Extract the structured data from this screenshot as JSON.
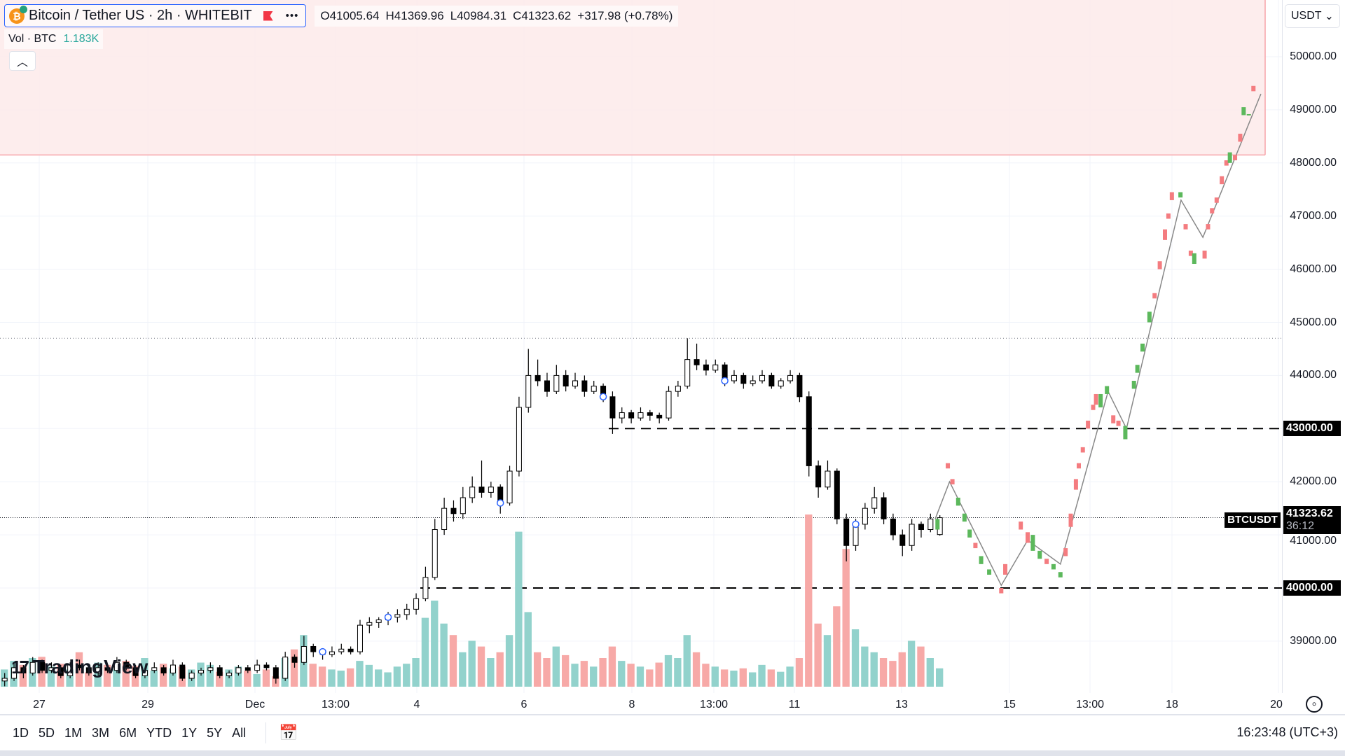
{
  "legend": {
    "title": "Bitcoin / Tether US · 2h · WHITEBIT",
    "coin_icon": "bitcoin-icon",
    "more_icon": "ellipsis-icon"
  },
  "ohlc": {
    "o": "O41005.64",
    "h": "H41369.96",
    "l": "L40984.31",
    "c": "C41323.62",
    "change": "+317.98 (+0.78%)"
  },
  "volume_legend": {
    "label": "Vol · BTC",
    "value": "1.183K"
  },
  "currency_select": {
    "value": "USDT"
  },
  "price_axis": {
    "labels": [
      "50000.00",
      "49000.00",
      "48000.00",
      "47000.00",
      "46000.00",
      "45000.00",
      "44000.00",
      "43000.00",
      "42000.00",
      "41000.00",
      "40000.00",
      "39000.00"
    ]
  },
  "tags": {
    "level_high": "43000.00",
    "level_low": "40000.00",
    "symbol": "BTCUSDT",
    "last_price": "41323.62",
    "countdown": "36:12"
  },
  "time_axis": {
    "labels": [
      "27",
      "29",
      "Dec",
      "13:00",
      "4",
      "6",
      "8",
      "13:00",
      "11",
      "13",
      "15",
      "13:00",
      "18",
      "20"
    ]
  },
  "toolbar": {
    "ranges": [
      "1D",
      "5D",
      "1M",
      "3M",
      "6M",
      "YTD",
      "1Y",
      "5Y",
      "All"
    ],
    "clock": "16:23:48 (UTC+3)"
  },
  "logo": {
    "text": "TradingView"
  },
  "colors": {
    "up_vol": "#92d2cc",
    "down_vol": "#f7a9a7",
    "fc_up": "#5cb85c",
    "fc_down": "#f47c80",
    "zone": "#fdeaea",
    "zone_border": "#f7a4a8",
    "accent": "#2962ff"
  },
  "chart_data": {
    "type": "candlestick",
    "price_range": [
      38000,
      50300
    ],
    "resistance_zone": {
      "from": 48150,
      "to": 50300
    },
    "levels": {
      "dashed": [
        43000,
        40000
      ],
      "dotted_high": 44700,
      "last": 41323.62
    },
    "candles": [
      [
        38250,
        38400,
        38150,
        38300
      ],
      [
        38300,
        38600,
        38250,
        38500
      ],
      [
        38500,
        38550,
        38300,
        38400
      ],
      [
        38400,
        38700,
        38350,
        38600
      ],
      [
        38600,
        38650,
        38400,
        38450
      ],
      [
        38450,
        38600,
        38400,
        38500
      ],
      [
        38500,
        38550,
        38300,
        38350
      ],
      [
        38350,
        38600,
        38300,
        38550
      ],
      [
        38550,
        38650,
        38450,
        38500
      ],
      [
        38500,
        38550,
        38350,
        38400
      ],
      [
        38400,
        38600,
        38350,
        38500
      ],
      [
        38500,
        38550,
        38400,
        38450
      ],
      [
        38450,
        38700,
        38400,
        38600
      ],
      [
        38600,
        38650,
        38450,
        38500
      ],
      [
        38500,
        38550,
        38300,
        38350
      ],
      [
        38350,
        38500,
        38300,
        38450
      ],
      [
        38450,
        38600,
        38400,
        38500
      ],
      [
        38500,
        38550,
        38350,
        38400
      ],
      [
        38400,
        38650,
        38350,
        38550
      ],
      [
        38550,
        38600,
        38250,
        38300
      ],
      [
        38300,
        38450,
        38250,
        38400
      ],
      [
        38400,
        38500,
        38350,
        38450
      ],
      [
        38450,
        38600,
        38400,
        38500
      ],
      [
        38500,
        38550,
        38300,
        38350
      ],
      [
        38350,
        38450,
        38300,
        38400
      ],
      [
        38400,
        38550,
        38350,
        38500
      ],
      [
        38500,
        38550,
        38400,
        38450
      ],
      [
        38450,
        38650,
        38400,
        38550
      ],
      [
        38550,
        38600,
        38450,
        38500
      ],
      [
        38500,
        38550,
        38200,
        38300
      ],
      [
        38300,
        38800,
        38250,
        38700
      ],
      [
        38700,
        38750,
        38500,
        38600
      ],
      [
        38600,
        39100,
        38550,
        38900
      ],
      [
        38900,
        38950,
        38700,
        38800
      ],
      [
        38800,
        38850,
        38650,
        38750
      ],
      [
        38750,
        38900,
        38700,
        38800
      ],
      [
        38800,
        38950,
        38750,
        38850
      ],
      [
        38850,
        38900,
        38750,
        38800
      ],
      [
        38800,
        39400,
        38750,
        39300
      ],
      [
        39300,
        39450,
        39150,
        39350
      ],
      [
        39350,
        39450,
        39250,
        39400
      ],
      [
        39400,
        39550,
        39300,
        39450
      ],
      [
        39450,
        39600,
        39350,
        39500
      ],
      [
        39500,
        39700,
        39400,
        39600
      ],
      [
        39600,
        39900,
        39500,
        39800
      ],
      [
        39800,
        40400,
        39750,
        40200
      ],
      [
        40200,
        41300,
        40150,
        41100
      ],
      [
        41100,
        41700,
        41000,
        41500
      ],
      [
        41500,
        41650,
        41250,
        41400
      ],
      [
        41400,
        41900,
        41300,
        41700
      ],
      [
        41700,
        42100,
        41600,
        41900
      ],
      [
        41900,
        42400,
        41700,
        41800
      ],
      [
        41800,
        42000,
        41700,
        41900
      ],
      [
        41900,
        41950,
        41400,
        41600
      ],
      [
        41600,
        42300,
        41550,
        42200
      ],
      [
        42200,
        43600,
        42100,
        43400
      ],
      [
        43400,
        44500,
        43300,
        44000
      ],
      [
        44000,
        44300,
        43800,
        43900
      ],
      [
        43900,
        44050,
        43600,
        43700
      ],
      [
        43700,
        44200,
        43650,
        44000
      ],
      [
        44000,
        44100,
        43700,
        43800
      ],
      [
        43800,
        44050,
        43750,
        43900
      ],
      [
        43900,
        44000,
        43600,
        43700
      ],
      [
        43700,
        43900,
        43650,
        43800
      ],
      [
        43800,
        43850,
        43500,
        43600
      ],
      [
        43600,
        43700,
        42900,
        43200
      ],
      [
        43200,
        43400,
        43100,
        43300
      ],
      [
        43300,
        43350,
        43100,
        43200
      ],
      [
        43200,
        43400,
        43150,
        43300
      ],
      [
        43300,
        43350,
        43150,
        43250
      ],
      [
        43250,
        43300,
        43100,
        43200
      ],
      [
        43200,
        43800,
        43150,
        43700
      ],
      [
        43700,
        43900,
        43600,
        43800
      ],
      [
        43800,
        44700,
        43750,
        44300
      ],
      [
        44300,
        44600,
        44100,
        44200
      ],
      [
        44200,
        44300,
        44000,
        44100
      ],
      [
        44100,
        44300,
        44050,
        44200
      ],
      [
        44200,
        44250,
        43800,
        43900
      ],
      [
        43900,
        44100,
        43850,
        44000
      ],
      [
        44000,
        44050,
        43750,
        43850
      ],
      [
        43850,
        44000,
        43800,
        43900
      ],
      [
        43900,
        44100,
        43850,
        44000
      ],
      [
        44000,
        44050,
        43750,
        43800
      ],
      [
        43800,
        43950,
        43750,
        43900
      ],
      [
        43900,
        44100,
        43850,
        44000
      ],
      [
        44000,
        44050,
        43500,
        43600
      ],
      [
        43600,
        43700,
        42100,
        42300
      ],
      [
        42300,
        42400,
        41700,
        41900
      ],
      [
        41900,
        42400,
        41850,
        42200
      ],
      [
        42200,
        42250,
        41200,
        41300
      ],
      [
        41300,
        41400,
        40500,
        40800
      ],
      [
        40800,
        41300,
        40700,
        41200
      ],
      [
        41200,
        41600,
        41100,
        41500
      ],
      [
        41500,
        41900,
        41400,
        41700
      ],
      [
        41700,
        41800,
        41200,
        41300
      ],
      [
        41300,
        41400,
        40900,
        41000
      ],
      [
        41000,
        41100,
        40600,
        40800
      ],
      [
        40800,
        41300,
        40700,
        41200
      ],
      [
        41200,
        41250,
        40950,
        41100
      ],
      [
        41100,
        41400,
        41050,
        41300
      ],
      [
        41005.64,
        41369.96,
        40984.31,
        41323.62
      ]
    ],
    "volumes": [
      300,
      450,
      380,
      500,
      520,
      350,
      400,
      300,
      600,
      250,
      420,
      380,
      300,
      450,
      360,
      500,
      280,
      400,
      320,
      350,
      300,
      420,
      380,
      260,
      300,
      350,
      280,
      220,
      300,
      180,
      500,
      650,
      900,
      400,
      350,
      300,
      280,
      320,
      450,
      380,
      300,
      250,
      350,
      400,
      500,
      1200,
      1500,
      1100,
      900,
      600,
      800,
      700,
      500,
      600,
      900,
      2700,
      1300,
      600,
      500,
      700,
      550,
      400,
      450,
      350,
      500,
      700,
      450,
      400,
      350,
      300,
      420,
      550,
      500,
      900,
      600,
      400,
      350,
      300,
      280,
      320,
      250,
      380,
      300,
      260,
      350,
      500,
      3000,
      1100,
      900,
      1400,
      2400,
      1000,
      700,
      600,
      500,
      450,
      600,
      800,
      700,
      500,
      320
    ],
    "forecast_candles": [
      [
        0.4,
        41100,
        41300,
        "up"
      ],
      [
        2.2,
        42350,
        42250,
        "down"
      ],
      [
        3,
        42050,
        41950,
        "down"
      ],
      [
        4,
        41550,
        41700,
        "up"
      ],
      [
        5.1,
        41250,
        41400,
        "up"
      ],
      [
        6,
        40950,
        41100,
        "up"
      ],
      [
        7,
        40850,
        40750,
        "down"
      ],
      [
        8,
        40450,
        40600,
        "up"
      ],
      [
        9.4,
        40250,
        40350,
        "up"
      ],
      [
        11.5,
        40000,
        39900,
        "down"
      ],
      [
        12.2,
        40450,
        40250,
        "down"
      ],
      [
        14.9,
        41250,
        41100,
        "down"
      ],
      [
        16.1,
        41050,
        40850,
        "down"
      ],
      [
        17,
        40700,
        41000,
        "up"
      ],
      [
        18.2,
        40550,
        40700,
        "up"
      ],
      [
        19.4,
        40550,
        40450,
        "down"
      ],
      [
        20.6,
        40350,
        40450,
        "up"
      ],
      [
        21.8,
        40200,
        40300,
        "up"
      ],
      [
        22.7,
        40750,
        40600,
        "down"
      ],
      [
        23.6,
        41400,
        41150,
        "down"
      ],
      [
        24.5,
        42050,
        41850,
        "down"
      ],
      [
        25,
        42350,
        42250,
        "down"
      ],
      [
        25.7,
        42650,
        42550,
        "down"
      ],
      [
        26.6,
        43150,
        43000,
        "down"
      ],
      [
        27.5,
        43450,
        43350,
        "down"
      ],
      [
        28,
        43650,
        43450,
        "down"
      ],
      [
        28.8,
        43400,
        43650,
        "up"
      ],
      [
        29.9,
        43650,
        43800,
        "up"
      ],
      [
        31,
        43250,
        43100,
        "down"
      ],
      [
        31.9,
        43150,
        43050,
        "down"
      ],
      [
        33.1,
        42800,
        43050,
        "up"
      ],
      [
        34.6,
        43750,
        43900,
        "up"
      ],
      [
        35.2,
        44050,
        44200,
        "up"
      ],
      [
        36.1,
        44450,
        44600,
        "up"
      ],
      [
        37.3,
        45000,
        45200,
        "up"
      ],
      [
        38.2,
        45550,
        45450,
        "down"
      ],
      [
        39.1,
        46150,
        46000,
        "down"
      ],
      [
        40,
        46750,
        46550,
        "down"
      ],
      [
        40.6,
        47050,
        46950,
        "down"
      ],
      [
        41.2,
        47450,
        47300,
        "down"
      ],
      [
        42.7,
        47350,
        47450,
        "up"
      ],
      [
        43.6,
        46850,
        46750,
        "down"
      ],
      [
        44.5,
        46350,
        46250,
        "down"
      ],
      [
        45.1,
        46100,
        46300,
        "up"
      ],
      [
        46.9,
        46350,
        46200,
        "down"
      ],
      [
        47.5,
        46850,
        46750,
        "down"
      ],
      [
        48.2,
        47150,
        47050,
        "down"
      ],
      [
        49,
        47350,
        47250,
        "down"
      ],
      [
        49.9,
        47750,
        47600,
        "down"
      ],
      [
        50.7,
        48050,
        47950,
        "down"
      ],
      [
        51.3,
        48000,
        48200,
        "up"
      ],
      [
        52.2,
        48150,
        48050,
        "down"
      ],
      [
        53.1,
        48550,
        48400,
        "down"
      ],
      [
        53.7,
        48900,
        49050,
        "up"
      ],
      [
        54.6,
        48900,
        48920,
        "up"
      ],
      [
        55.4,
        49450,
        49350,
        "down"
      ]
    ],
    "forecast_path": [
      [
        0,
        41300
      ],
      [
        2.5,
        42000
      ],
      [
        11.5,
        40050
      ],
      [
        16.1,
        40900
      ],
      [
        21.8,
        40450
      ],
      [
        30.1,
        43700
      ],
      [
        33.3,
        43000
      ],
      [
        42.8,
        47300
      ],
      [
        46.6,
        46600
      ],
      [
        56.7,
        49300
      ]
    ]
  }
}
